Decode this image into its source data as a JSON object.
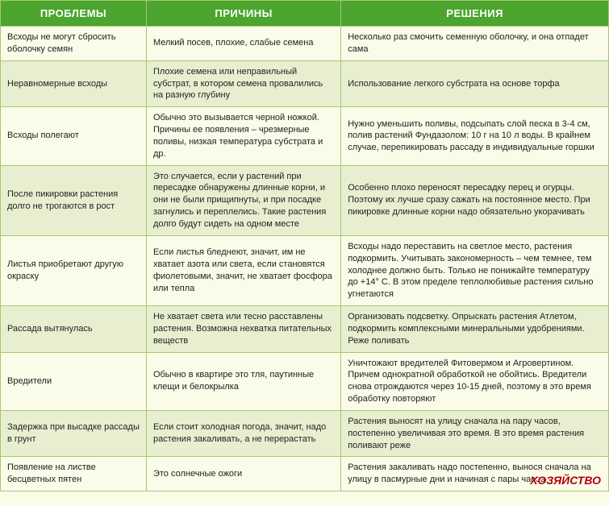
{
  "table": {
    "header_bg": "#4ba52e",
    "header_fg": "#ffffff",
    "row_bg_even": "#fafbe8",
    "row_bg_odd": "#e8efd1",
    "border_color": "#a6c86e",
    "font_size_header": 13,
    "font_size_cell": 11,
    "columns": [
      {
        "label": "ПРОБЛЕМЫ",
        "width_pct": 24
      },
      {
        "label": "ПРИЧИНЫ",
        "width_pct": 32
      },
      {
        "label": "РЕШЕНИЯ",
        "width_pct": 44
      }
    ],
    "rows": [
      [
        "Всходы не могут сбросить оболочку семян",
        "Мелкий посев, плохие, слабые семена",
        "Несколько раз смочить семенную оболочку, и она отпадет сама"
      ],
      [
        "Неравномерные всходы",
        "Плохие семена или неправильный субстрат, в котором семена провалились на разную глубину",
        "Использование легкого субстрата на основе торфа"
      ],
      [
        "Всходы полегают",
        "Обычно это вызывается черной ножкой. Причины ее появления – чрезмерные поливы, низкая температура субстрата и др.",
        "Нужно уменьшить поливы, подсыпать слой песка в 3-4 см, полив растений Фундазолом: 10 г на 10 л воды. В крайнем случае, перепикировать рассаду в индивидуальные горшки"
      ],
      [
        "После пикировки растения долго не трогаются в рост",
        "Это случается, если у растений при пересадке обнаружены длинные корни, и они не были прищипнуты, и при посадке загнулись и переплелись. Такие растения долго будут сидеть на одном месте",
        "Особенно плохо переносят пересадку перец и огурцы. Поэтому их лучше сразу сажать на постоянное место. При пикировке длинные корни надо обязательно укорачивать"
      ],
      [
        "Листья приобретают другую окраску",
        "Если листья бледнеют, значит, им не хватает азота или света, если становятся фиолетовыми, значит, не хватает фосфора или тепла",
        "Всходы надо переставить на светлое место, растения подкормить. Учитывать закономерность – чем темнее, тем холоднее должно быть. Только не понижайте температуру до +14° С. В этом пределе теплолюбивые растения сильно угнетаются"
      ],
      [
        "Рассада вытянулась",
        "Не хватает света или тесно расставлены растения. Возможна нехватка питательных веществ",
        "Организовать подсветку. Опрыскать растения Атлетом, подкормить комплексными минеральными удобрениями. Реже поливать"
      ],
      [
        "Вредители",
        "Обычно в квартире это тля, паутинные клещи и белокрылка",
        "Уничтожают вредителей Фитовермом и Агровертином. Причем однократной обработкой не обойтись. Вредители снова отрождаются через 10-15 дней, поэтому в это время обработку повторяют"
      ],
      [
        "Задержка при высадке рассады в грунт",
        "Если стоит холодная погода, значит, надо растения закаливать, а не перерастать",
        "Растения выносят на улицу сначала на пару часов, постепенно увеличивая это время. В это время растения поливают реже"
      ],
      [
        "Появление на листве бесцветных пятен",
        "Это солнечные ожоги",
        "Растения закаливать надо постепенно, вынося сначала на улицу в пасмурные дни и начиная с пары часов"
      ]
    ]
  },
  "watermark": "ХОЗЯЙСТВО"
}
